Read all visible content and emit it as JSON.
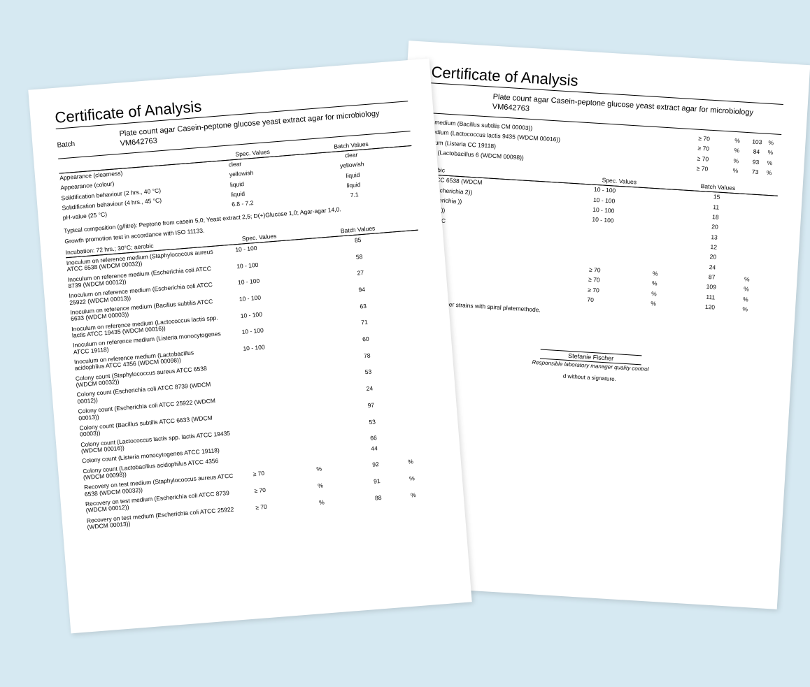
{
  "background_color": "#d6e9f2",
  "page_color": "#ffffff",
  "title": "Certificate of Analysis",
  "batch_label": "Batch",
  "product_name": "Plate count agar Casein-peptone glucose yeast extract agar for microbiology",
  "batch_number": "VM642763",
  "headers": {
    "spec": "Spec. Values",
    "batch": "Batch Values"
  },
  "page1": {
    "appearance_rows": [
      {
        "name": "Appearance (clearness)",
        "spec": "clear",
        "batch": "clear"
      },
      {
        "name": "Appearance (colour)",
        "spec": "yellowish",
        "batch": "yellowish"
      },
      {
        "name": "Solidification behaviour (2  hrs., 40  °C)",
        "spec": "liquid",
        "batch": "liquid"
      },
      {
        "name": "Solidification behaviour (4  hrs., 45  °C)",
        "spec": "liquid",
        "batch": "liquid"
      },
      {
        "name": "pH-value (25  °C)",
        "spec": "6.8 - 7.2",
        "batch": "7.1"
      }
    ],
    "composition_note": "Typical composition (g/litre): Peptone from casein 5,0; Yeast extract 2,5; D(+)Glucose 1,0; Agar-agar 14,0.",
    "growth_note": "Growth promotion test in accordance with ISO 11133.",
    "incubation_header": "Incubation: 72 hrs.; 30°C; aerobic",
    "test_rows": [
      {
        "name": "Inoculum on reference medium (Staphylococcus aureus ATCC 6538 (WDCM 00032))",
        "spec": "10 - 100",
        "unit": "",
        "batch": "85",
        "unit2": ""
      },
      {
        "name": "Inoculum on reference medium (Escherichia coli ATCC 8739 (WDCM 00012))",
        "spec": "10 - 100",
        "unit": "",
        "batch": "58",
        "unit2": ""
      },
      {
        "name": "Inoculum on reference medium (Escherichia coli ATCC 25922 (WDCM 00013))",
        "spec": "10 - 100",
        "unit": "",
        "batch": "27",
        "unit2": ""
      },
      {
        "name": "Inoculum on reference medium (Bacillus subtilis ATCC 6633 (WDCM 00003))",
        "spec": "10 - 100",
        "unit": "",
        "batch": "94",
        "unit2": ""
      },
      {
        "name": "Inoculum on reference medium (Lactococcus lactis spp. lactis ATCC 19435 (WDCM 00016))",
        "spec": "10 - 100",
        "unit": "",
        "batch": "63",
        "unit2": ""
      },
      {
        "name": "Inoculum on reference medium (Listeria monocytogenes ATCC 19118)",
        "spec": "10 - 100",
        "unit": "",
        "batch": "71",
        "unit2": ""
      },
      {
        "name": "Inoculum on reference medium (Lactobacillus acidophilus ATCC 4356 (WDCM 00098))",
        "spec": "10 - 100",
        "unit": "",
        "batch": "60",
        "unit2": ""
      },
      {
        "name": "Colony count (Staphylococcus aureus ATCC 6538 (WDCM 00032))",
        "spec": "",
        "unit": "",
        "batch": "78",
        "unit2": ""
      },
      {
        "name": "Colony count (Escherichia coli ATCC 8739 (WDCM 00012))",
        "spec": "",
        "unit": "",
        "batch": "53",
        "unit2": ""
      },
      {
        "name": "Colony count (Escherichia coli ATCC 25922 (WDCM 00013))",
        "spec": "",
        "unit": "",
        "batch": "24",
        "unit2": ""
      },
      {
        "name": "Colony count (Bacillus subtilis ATCC 6633 (WDCM 00003))",
        "spec": "",
        "unit": "",
        "batch": "97",
        "unit2": ""
      },
      {
        "name": "Colony count (Lactococcus lactis spp. lactis ATCC 19435 (WDCM 00016))",
        "spec": "",
        "unit": "",
        "batch": "53",
        "unit2": ""
      },
      {
        "name": "Colony count (Listeria monocytogenes ATCC 19118)",
        "spec": "",
        "unit": "",
        "batch": "66",
        "unit2": ""
      },
      {
        "name": "Colony count (Lactobacillus acidophilus ATCC 4356 (WDCM 00098))",
        "spec": "",
        "unit": "",
        "batch": "44",
        "unit2": ""
      },
      {
        "name": "Recovery on test medium (Staphylococcus aureus ATCC 6538 (WDCM 00032))",
        "spec": "≥ 70",
        "unit": "%",
        "batch": "92",
        "unit2": "%"
      },
      {
        "name": "Recovery on test medium (Escherichia coli ATCC 8739 (WDCM 00012))",
        "spec": "≥ 70",
        "unit": "%",
        "batch": "91",
        "unit2": "%"
      },
      {
        "name": "Recovery on test medium (Escherichia coli ATCC 25922 (WDCM 00013))",
        "spec": "≥ 70",
        "unit": "%",
        "batch": "88",
        "unit2": "%"
      }
    ]
  },
  "page2": {
    "top_rows": [
      {
        "name": "st medium (Bacillus subtilis CM 00003))",
        "spec": "≥ 70",
        "unit": "%",
        "batch": "103",
        "unit2": "%"
      },
      {
        "name": "medium (Lactococcus lactis 9435 (WDCM 00016))",
        "spec": "≥ 70",
        "unit": "%",
        "batch": "84",
        "unit2": "%"
      },
      {
        "name": "edium (Listeria CC 19118)",
        "spec": "≥ 70",
        "unit": "%",
        "batch": "93",
        "unit2": "%"
      },
      {
        "name": "ium (Lactobacillus 6 (WDCM 00098))",
        "spec": "≥ 70",
        "unit": "%",
        "batch": "73",
        "unit2": "%"
      }
    ],
    "section2_header": "aerobic",
    "section2_rows": [
      {
        "name": "ium CC 6538 (WDCM",
        "spec": "10 - 100",
        "unit": "",
        "batch": "15",
        "unit2": ""
      },
      {
        "name": "m (Escherichia 2))",
        "spec": "10 - 100",
        "unit": "",
        "batch": "11",
        "unit2": ""
      },
      {
        "name": "(Escherichia ))",
        "spec": "10 - 100",
        "unit": "",
        "batch": "18",
        "unit2": ""
      },
      {
        "name": "acillus ))",
        "spec": "10 - 100",
        "unit": "",
        "batch": "20",
        "unit2": ""
      },
      {
        "name": "us ATCC",
        "spec": "",
        "unit": "",
        "batch": "13",
        "unit2": ""
      },
      {
        "name": "8739",
        "spec": "",
        "unit": "",
        "batch": "12",
        "unit2": ""
      },
      {
        "name": "5922",
        "spec": "",
        "unit": "",
        "batch": "20",
        "unit2": ""
      },
      {
        "name": "3",
        "spec": "",
        "unit": "",
        "batch": "24",
        "unit2": ""
      },
      {
        "name": "",
        "spec": "≥ 70",
        "unit": "%",
        "batch": "87",
        "unit2": "%"
      },
      {
        "name": "",
        "spec": "≥ 70",
        "unit": "%",
        "batch": "109",
        "unit2": "%"
      },
      {
        "name": "",
        "spec": "≥ 70",
        "unit": "%",
        "batch": "111",
        "unit2": "%"
      },
      {
        "name": "",
        "spec": "70",
        "unit": "%",
        "batch": "120",
        "unit2": "%"
      }
    ],
    "method_note": "technic. Other strains with spiral platemethode.",
    "signatory_name": "Stefanie Fischer",
    "signatory_role": "Responsible laboratory manager quality control",
    "signature_note": "d without a signature."
  }
}
